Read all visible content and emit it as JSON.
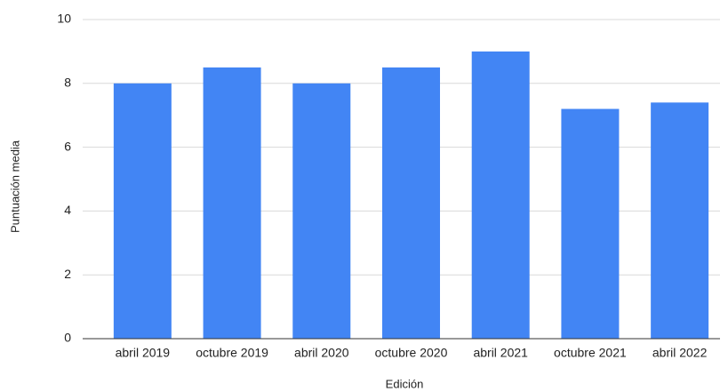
{
  "chart_data": {
    "type": "bar",
    "categories": [
      "abril 2019",
      "octubre 2019",
      "abril 2020",
      "octubre 2020",
      "abril 2021",
      "octubre 2021",
      "abril 2022"
    ],
    "values": [
      8,
      8.5,
      8,
      8.5,
      9,
      7.2,
      7.4
    ],
    "color": "#4285f4",
    "x_label": "Edición",
    "y_label": "Puntuación media",
    "ylim": [
      0,
      10
    ],
    "yticks": [
      0,
      2,
      4,
      6,
      8,
      10
    ],
    "grid": true
  }
}
